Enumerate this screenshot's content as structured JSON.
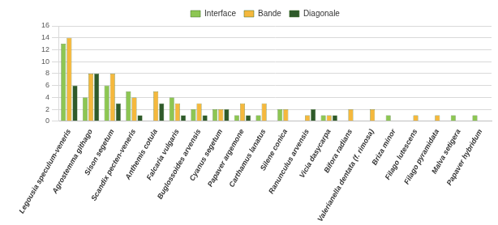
{
  "chart_data": {
    "type": "bar",
    "categories": [
      "Legousia speculum-veneris",
      "Agrostemma githago",
      "Sison segetum",
      "Scandix pecten-veneris",
      "Anthemis cotula",
      "Falcaria vulgaris",
      "Buglossoides arvensis",
      "Cyanus segetum",
      "Papaver argemone",
      "Carthamus lanatus",
      "Silene conica",
      "Ranunculus arvensis",
      "Vicia dasycarpa",
      "Bifora radians",
      "Valerianella dentata (f. rimosa)",
      "Briza minor",
      "Filago lutescens",
      "Filago pyramidata",
      "Malva setigera",
      "Papaver hybridum"
    ],
    "series": [
      {
        "name": "Interface",
        "color": "#8dc653",
        "values": [
          13,
          4,
          6,
          5,
          0,
          4,
          2,
          2,
          1,
          1,
          2,
          0,
          1,
          0,
          0,
          1,
          0,
          0,
          1,
          1
        ]
      },
      {
        "name": "Bande",
        "color": "#f5b83d",
        "values": [
          14,
          8,
          8,
          4,
          5,
          3,
          3,
          2,
          3,
          3,
          2,
          1,
          1,
          2,
          2,
          0,
          1,
          1,
          0,
          0
        ]
      },
      {
        "name": "Diagonale",
        "color": "#2f5a2a",
        "values": [
          6,
          8,
          3,
          1,
          3,
          1,
          1,
          2,
          1,
          0,
          0,
          2,
          1,
          0,
          0,
          0,
          0,
          0,
          0,
          0
        ]
      }
    ],
    "ylim": [
      0,
      16
    ],
    "yticks": [
      0,
      2,
      4,
      6,
      8,
      10,
      12,
      14,
      16
    ],
    "grid": true,
    "legend": "top"
  }
}
